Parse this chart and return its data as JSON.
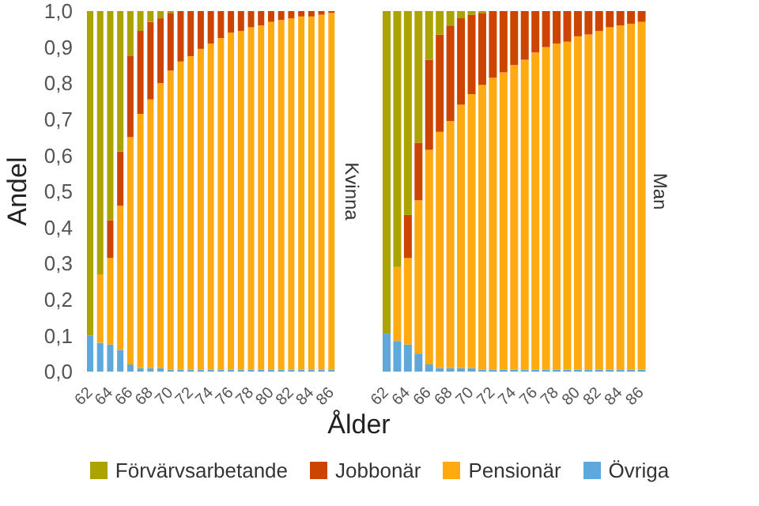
{
  "chart_data": [
    {
      "type": "bar",
      "title": "Kvinna",
      "xlabel": "Ålder",
      "ylabel": "Andel",
      "stacked": true,
      "legend": "bottom",
      "categories": [
        "62",
        null,
        "64",
        null,
        "66",
        null,
        "68",
        null,
        "70",
        null,
        "72",
        null,
        "74",
        null,
        "76",
        null,
        "78",
        null,
        "80",
        null,
        "82",
        null,
        "84",
        null,
        "86"
      ],
      "ylim": [
        0,
        1
      ],
      "yticks": [
        {
          "value": 0,
          "label": "0,0"
        },
        {
          "value": 0.1,
          "label": "0,1"
        },
        {
          "value": 0.2,
          "label": "0,2"
        },
        {
          "value": 0.3,
          "label": "0,3"
        },
        {
          "value": 0.4,
          "label": "0,4"
        },
        {
          "value": 0.5,
          "label": "0,5"
        },
        {
          "value": 0.6,
          "label": "0,6"
        },
        {
          "value": 0.7,
          "label": "0,7"
        },
        {
          "value": 0.8,
          "label": "0,8"
        },
        {
          "value": 0.9,
          "label": "0,9"
        },
        {
          "value": 1,
          "label": "1,0"
        }
      ],
      "series": [
        {
          "name": "Övriga",
          "color": "#5ea8dc",
          "values": [
            0.1,
            0.08,
            0.075,
            0.06,
            0.02,
            0.01,
            0.01,
            0.01,
            0.005,
            0.005,
            0.005,
            0.005,
            0.005,
            0.005,
            0.005,
            0.005,
            0.005,
            0.005,
            0.005,
            0.005,
            0.005,
            0.005,
            0.005,
            0.005,
            0.005
          ]
        },
        {
          "name": "Pensionär",
          "color": "#ffaa11",
          "values": [
            0,
            0.19,
            0.24,
            0.4,
            0.63,
            0.705,
            0.745,
            0.79,
            0.83,
            0.855,
            0.87,
            0.89,
            0.905,
            0.92,
            0.935,
            0.94,
            0.95,
            0.955,
            0.965,
            0.97,
            0.975,
            0.98,
            0.98,
            0.985,
            0.99
          ]
        },
        {
          "name": "Jobbonär",
          "color": "#cc4400",
          "values": [
            0,
            0,
            0.105,
            0.15,
            0.225,
            0.23,
            0.215,
            0.18,
            0.16,
            0.14,
            0.125,
            0.105,
            0.09,
            0.075,
            0.06,
            0.055,
            0.045,
            0.04,
            0.03,
            0.025,
            0.02,
            0.015,
            0.015,
            0.01,
            0.005
          ]
        },
        {
          "name": "Förvärvsarbetande",
          "color": "#aaa300",
          "values": [
            0.9,
            0.73,
            0.58,
            0.39,
            0.125,
            0.055,
            0.03,
            0.02,
            0.005,
            0,
            0,
            0,
            0,
            0,
            0,
            0,
            0,
            0,
            0,
            0,
            0,
            0,
            0,
            0,
            0
          ]
        }
      ]
    },
    {
      "type": "bar",
      "title": "Man",
      "stacked": true,
      "tick_labels": "x",
      "categories": [
        "62",
        null,
        "64",
        null,
        "66",
        null,
        "68",
        null,
        "70",
        null,
        "72",
        null,
        "74",
        null,
        "76",
        null,
        "78",
        null,
        "80",
        null,
        "82",
        null,
        "84",
        null,
        "86"
      ],
      "ylim": [
        0,
        1
      ],
      "series": [
        {
          "name": "Övriga",
          "color": "#5ea8dc",
          "values": [
            0.105,
            0.085,
            0.075,
            0.05,
            0.02,
            0.01,
            0.01,
            0.01,
            0.01,
            0.005,
            0.005,
            0.005,
            0.005,
            0.005,
            0.005,
            0.005,
            0.005,
            0.005,
            0.005,
            0.005,
            0.005,
            0.005,
            0.005,
            0.005,
            0.005
          ]
        },
        {
          "name": "Pensionär",
          "color": "#ffaa11",
          "values": [
            0,
            0.205,
            0.24,
            0.425,
            0.595,
            0.655,
            0.685,
            0.73,
            0.76,
            0.79,
            0.81,
            0.825,
            0.845,
            0.86,
            0.88,
            0.895,
            0.905,
            0.91,
            0.925,
            0.93,
            0.94,
            0.95,
            0.955,
            0.96,
            0.965
          ]
        },
        {
          "name": "Jobbonär",
          "color": "#cc4400",
          "values": [
            0,
            0,
            0.12,
            0.16,
            0.25,
            0.27,
            0.265,
            0.24,
            0.22,
            0.2,
            0.185,
            0.17,
            0.15,
            0.135,
            0.115,
            0.1,
            0.09,
            0.085,
            0.07,
            0.065,
            0.055,
            0.045,
            0.04,
            0.035,
            0.03
          ]
        },
        {
          "name": "Förvärvsarbetande",
          "color": "#aaa300",
          "values": [
            0.895,
            0.71,
            0.565,
            0.365,
            0.135,
            0.065,
            0.04,
            0.02,
            0.01,
            0.005,
            0,
            0,
            0,
            0,
            0,
            0,
            0,
            0,
            0,
            0,
            0,
            0,
            0,
            0,
            0
          ]
        }
      ]
    }
  ]
}
